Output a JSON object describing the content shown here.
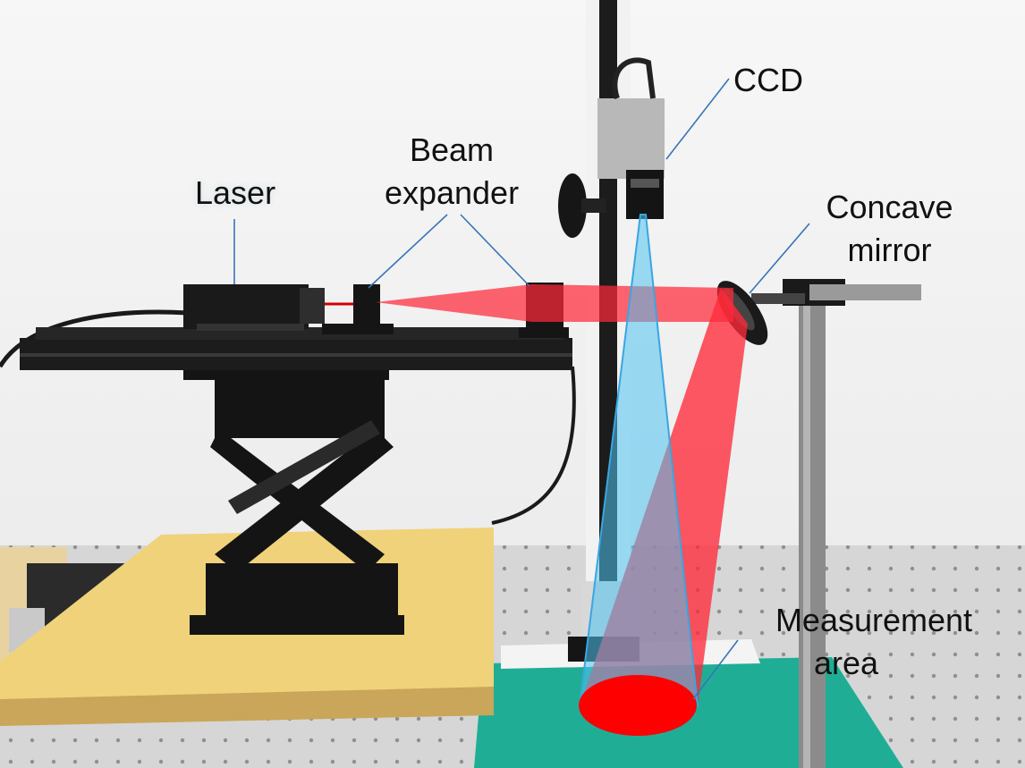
{
  "labels": {
    "ccd": "CCD",
    "beam_expander_line1": "Beam",
    "beam_expander_line2": "expander",
    "laser": "Laser",
    "concave_mirror_line1": "Concave",
    "concave_mirror_line2": "mirror",
    "measurement_area_line1": "Measurement",
    "measurement_area_line2": "area"
  },
  "colors": {
    "laser_beam": "#ff2a3a",
    "camera_view": "#4fc3f0",
    "callout_line": "#3a74b8",
    "spot": "#ff0000",
    "breadboard": "#d8d8d8",
    "wooden_board": "#f0d27a",
    "green_mat": "#1fae95"
  }
}
